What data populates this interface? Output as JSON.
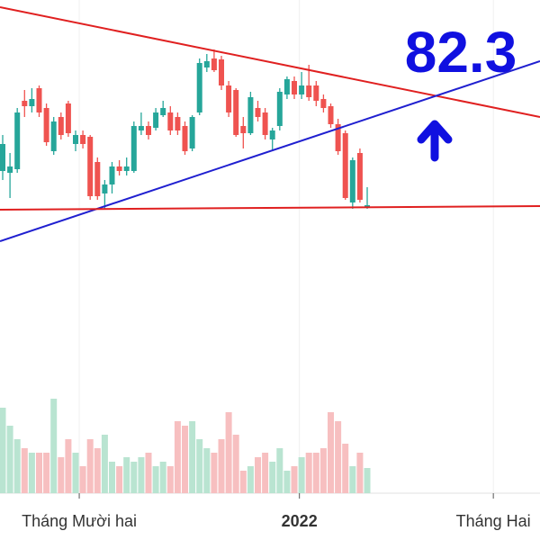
{
  "chart_data": {
    "type": "candlestick",
    "annotation": "82.3",
    "ylim": [
      40,
      100
    ],
    "volume_ylim": [
      0,
      100
    ],
    "up_color": "#26a69a",
    "down_color": "#ef5350",
    "volume_up_color": "#b9e4d1",
    "volume_down_color": "#f7bfc0",
    "xlim": [
      -0.37,
      73.7
    ],
    "xticks": [
      {
        "value": 10.5,
        "label": "Tháng Mười hai"
      },
      {
        "value": 40.7,
        "label": "2022"
      },
      {
        "value": 67.3,
        "label": "Tháng Hai"
      }
    ],
    "open": [
      81,
      80.8,
      81.2,
      88.8,
      88.2,
      90.2,
      88,
      83.2,
      87,
      88.5,
      84,
      85,
      84.8,
      82,
      78.5,
      79.5,
      81.5,
      81,
      81,
      85.5,
      86,
      85.8,
      87.2,
      87.5,
      87,
      86,
      83.5,
      87.5,
      92.5,
      93.5,
      93.4,
      90.5,
      90,
      86,
      85.2,
      88,
      87.5,
      84.5,
      86,
      89.5,
      91,
      89.5,
      90.5,
      90.5,
      89,
      88.2,
      86.2,
      85.2,
      77.5,
      83,
      77
    ],
    "high": [
      85,
      83,
      88,
      90,
      90.2,
      90.5,
      88.5,
      87,
      87.5,
      88.8,
      85.5,
      85.5,
      85,
      82.5,
      80,
      82,
      82.2,
      82.5,
      86.5,
      87.5,
      86.5,
      88,
      88.8,
      88.2,
      87.5,
      86.5,
      87.2,
      93.5,
      94,
      94.5,
      93.8,
      91,
      90.2,
      87,
      89.8,
      88.8,
      88,
      85.8,
      90.2,
      91.5,
      91.5,
      92,
      92.8,
      91,
      89.5,
      88.5,
      86.8,
      85.5,
      82.5,
      83.5,
      79.2
    ],
    "low": [
      80,
      78,
      80.8,
      87,
      87.5,
      87,
      83.8,
      82.8,
      84.5,
      84.8,
      83.2,
      83.5,
      77.8,
      77.8,
      76.8,
      78.5,
      80.5,
      80.5,
      80.8,
      85,
      84.5,
      85.5,
      87,
      85,
      85,
      82.8,
      83.2,
      87.2,
      92,
      92,
      90,
      87,
      84.8,
      83.5,
      85,
      86.5,
      84.5,
      83.2,
      85.5,
      89,
      89,
      89,
      88.8,
      88.2,
      87.5,
      85.8,
      82.8,
      77.8,
      76.8,
      77.5,
      76.8
    ],
    "close": [
      84,
      81.5,
      87.5,
      88.2,
      89,
      87.5,
      84.2,
      86.5,
      85,
      85.2,
      85,
      84,
      78.2,
      78.2,
      79.5,
      81.5,
      81,
      81.5,
      86,
      86,
      85,
      87.5,
      88,
      85.5,
      85.5,
      83.2,
      87,
      93,
      93.2,
      92.2,
      90.5,
      87.5,
      85,
      85.2,
      89.2,
      87,
      85,
      85.5,
      89.8,
      91.2,
      89.5,
      90.5,
      89.2,
      88.8,
      88,
      86.2,
      83.2,
      78,
      82.2,
      77.8,
      77.2
    ],
    "volume": [
      95,
      75,
      60,
      50,
      45,
      45,
      45,
      105,
      40,
      60,
      45,
      30,
      60,
      50,
      65,
      35,
      30,
      40,
      35,
      40,
      45,
      30,
      35,
      30,
      80,
      75,
      80,
      60,
      50,
      45,
      60,
      90,
      65,
      25,
      30,
      40,
      45,
      35,
      50,
      25,
      30,
      40,
      45,
      45,
      50,
      90,
      80,
      55,
      30,
      45,
      28
    ],
    "trendlines": [
      {
        "color": "#e02020",
        "x": [
          -0.37,
          73.7
        ],
        "values": [
          99.2,
          87
        ]
      },
      {
        "color": "#1f1fd0",
        "x": [
          -0.37,
          73.7
        ],
        "values": [
          73.2,
          93.2
        ]
      },
      {
        "color": "#e02020",
        "x": [
          -0.37,
          73.7
        ],
        "values": [
          76.7,
          77.1
        ]
      }
    ]
  }
}
